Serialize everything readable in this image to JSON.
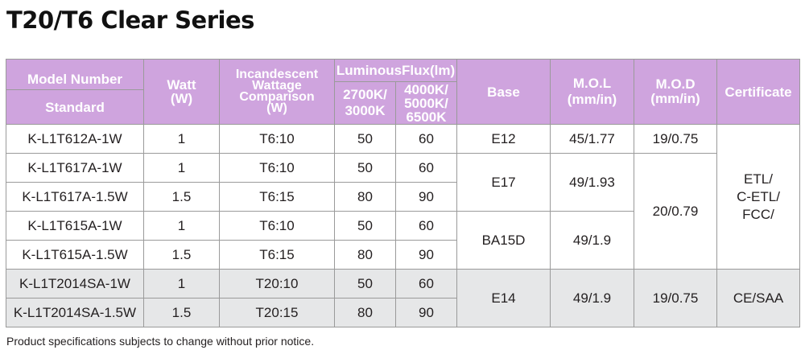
{
  "page": {
    "title": "T20/T6 Clear Series",
    "footnote": "Product specifications subjects to change without prior notice."
  },
  "table": {
    "headers": {
      "model_number": "Model Number",
      "standard": "Standard",
      "watt": "Watt\n(W)",
      "incandescent": "Incandescent\nWattage\nComparison\n(W)",
      "luminous_flux": "LuminousFlux(lm)",
      "flux_low": "2700K/\n3000K",
      "flux_high": "4000K/\n5000K/\n6500K",
      "base": "Base",
      "mol": "M.O.L\n(mm/in)",
      "mod": "M.O.D\n(mm/in)",
      "certificate": "Certificate"
    },
    "rows": [
      {
        "model": "K-L1T612A-1W",
        "watt": "1",
        "comparison": "T6:10",
        "flux_low": "50",
        "flux_high": "60"
      },
      {
        "model": "K-L1T617A-1W",
        "watt": "1",
        "comparison": "T6:10",
        "flux_low": "50",
        "flux_high": "60"
      },
      {
        "model": "K-L1T617A-1.5W",
        "watt": "1.5",
        "comparison": "T6:15",
        "flux_low": "80",
        "flux_high": "90"
      },
      {
        "model": "K-L1T615A-1W",
        "watt": "1",
        "comparison": "T6:10",
        "flux_low": "50",
        "flux_high": "60"
      },
      {
        "model": "K-L1T615A-1.5W",
        "watt": "1.5",
        "comparison": "T6:15",
        "flux_low": "80",
        "flux_high": "90"
      },
      {
        "model": "K-L1T2014SA-1W",
        "watt": "1",
        "comparison": "T20:10",
        "flux_low": "50",
        "flux_high": "60"
      },
      {
        "model": "K-L1T2014SA-1.5W",
        "watt": "1.5",
        "comparison": "T20:15",
        "flux_low": "80",
        "flux_high": "90"
      }
    ],
    "base": [
      "E12",
      "E17",
      "BA15D",
      "E14"
    ],
    "mol": [
      "45/1.77",
      "49/1.93",
      "49/1.9",
      "49/1.9"
    ],
    "mod": [
      "19/0.75",
      "20/0.79",
      "19/0.75"
    ],
    "certificate": [
      "ETL/\nC-ETL/\nFCC/",
      "CE/SAA"
    ],
    "colors": {
      "header_bg": "#cfa4de",
      "header_text": "#ffffff",
      "grey_row": "#e6e7e8",
      "border": "#9a9a9a"
    }
  }
}
